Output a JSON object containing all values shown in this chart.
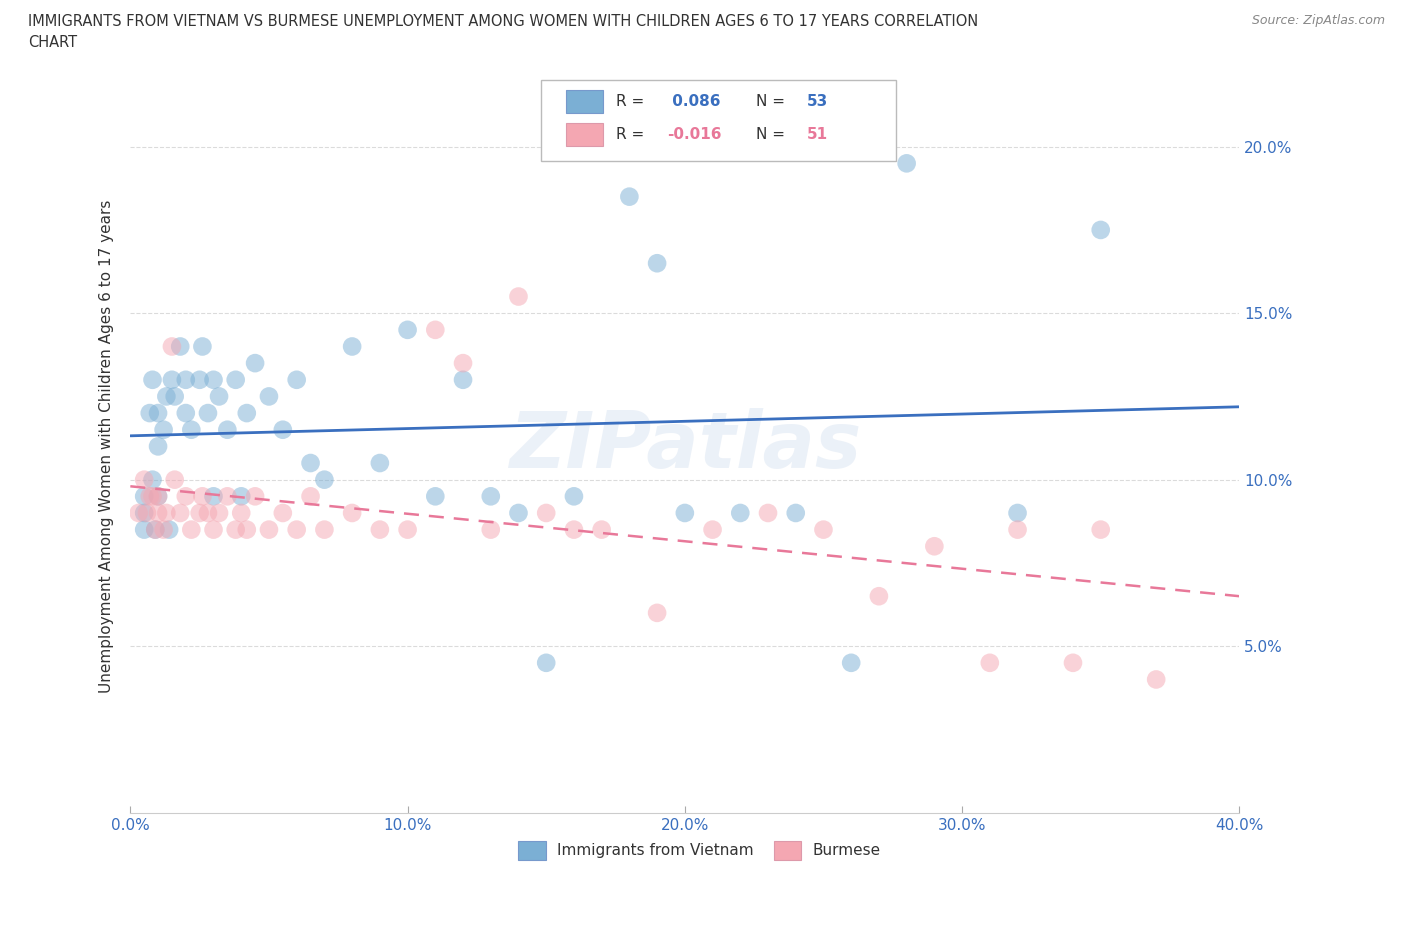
{
  "title_line1": "IMMIGRANTS FROM VIETNAM VS BURMESE UNEMPLOYMENT AMONG WOMEN WITH CHILDREN AGES 6 TO 17 YEARS CORRELATION",
  "title_line2": "CHART",
  "source": "Source: ZipAtlas.com",
  "ylabel": "Unemployment Among Women with Children Ages 6 to 17 years",
  "watermark": "ZIPatlas",
  "xlim": [
    0.0,
    0.4
  ],
  "ylim": [
    0.0,
    0.22
  ],
  "xticks": [
    0.0,
    0.1,
    0.2,
    0.3,
    0.4
  ],
  "xticklabels": [
    "0.0%",
    "10.0%",
    "20.0%",
    "30.0%",
    "40.0%"
  ],
  "yticks": [
    0.05,
    0.1,
    0.15,
    0.2
  ],
  "yticklabels": [
    "5.0%",
    "10.0%",
    "15.0%",
    "20.0%"
  ],
  "legend_labels": [
    "Immigrants from Vietnam",
    "Burmese"
  ],
  "color_blue": "#7BAFD4",
  "color_pink": "#F4A7B2",
  "line_blue": "#3A6FBF",
  "line_pink": "#E87899",
  "text_blue": "#3A6FBF",
  "text_pink": "#E87899",
  "background": "#FFFFFF",
  "grid_color": "#CCCCCC",
  "vietnam_x": [
    0.005,
    0.005,
    0.005,
    0.007,
    0.008,
    0.008,
    0.009,
    0.01,
    0.01,
    0.01,
    0.012,
    0.013,
    0.014,
    0.015,
    0.016,
    0.018,
    0.02,
    0.02,
    0.022,
    0.025,
    0.026,
    0.028,
    0.03,
    0.03,
    0.032,
    0.035,
    0.038,
    0.04,
    0.042,
    0.045,
    0.05,
    0.055,
    0.06,
    0.065,
    0.07,
    0.08,
    0.09,
    0.1,
    0.11,
    0.12,
    0.13,
    0.14,
    0.15,
    0.16,
    0.18,
    0.19,
    0.2,
    0.22,
    0.24,
    0.26,
    0.28,
    0.32,
    0.35
  ],
  "vietnam_y": [
    0.095,
    0.09,
    0.085,
    0.12,
    0.13,
    0.1,
    0.085,
    0.095,
    0.11,
    0.12,
    0.115,
    0.125,
    0.085,
    0.13,
    0.125,
    0.14,
    0.12,
    0.13,
    0.115,
    0.13,
    0.14,
    0.12,
    0.095,
    0.13,
    0.125,
    0.115,
    0.13,
    0.095,
    0.12,
    0.135,
    0.125,
    0.115,
    0.13,
    0.105,
    0.1,
    0.14,
    0.105,
    0.145,
    0.095,
    0.13,
    0.095,
    0.09,
    0.045,
    0.095,
    0.185,
    0.165,
    0.09,
    0.09,
    0.09,
    0.045,
    0.195,
    0.09,
    0.175
  ],
  "burmese_x": [
    0.003,
    0.005,
    0.006,
    0.007,
    0.008,
    0.009,
    0.01,
    0.01,
    0.012,
    0.013,
    0.015,
    0.016,
    0.018,
    0.02,
    0.022,
    0.025,
    0.026,
    0.028,
    0.03,
    0.032,
    0.035,
    0.038,
    0.04,
    0.042,
    0.045,
    0.05,
    0.055,
    0.06,
    0.065,
    0.07,
    0.08,
    0.09,
    0.1,
    0.11,
    0.12,
    0.13,
    0.14,
    0.15,
    0.16,
    0.17,
    0.19,
    0.21,
    0.23,
    0.25,
    0.27,
    0.29,
    0.31,
    0.32,
    0.34,
    0.35,
    0.37
  ],
  "burmese_y": [
    0.09,
    0.1,
    0.09,
    0.095,
    0.095,
    0.085,
    0.09,
    0.095,
    0.085,
    0.09,
    0.14,
    0.1,
    0.09,
    0.095,
    0.085,
    0.09,
    0.095,
    0.09,
    0.085,
    0.09,
    0.095,
    0.085,
    0.09,
    0.085,
    0.095,
    0.085,
    0.09,
    0.085,
    0.095,
    0.085,
    0.09,
    0.085,
    0.085,
    0.145,
    0.135,
    0.085,
    0.155,
    0.09,
    0.085,
    0.085,
    0.06,
    0.085,
    0.09,
    0.085,
    0.065,
    0.08,
    0.045,
    0.085,
    0.045,
    0.085,
    0.04
  ]
}
